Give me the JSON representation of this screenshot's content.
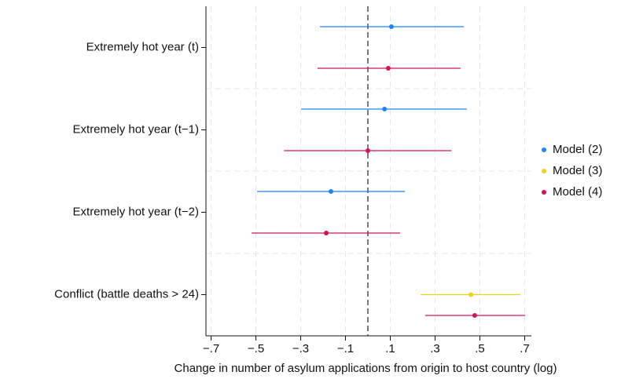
{
  "chart_data": {
    "type": "coefplot",
    "x_label": "Change in number of asylum applications from origin to host country (log)",
    "categories": [
      "Extremely hot year (t)",
      "Extremely hot year (t−1)",
      "Extremely hot year (t−2)",
      "Conflict (battle deaths > 24)"
    ],
    "series": [
      {
        "name": "Model (2)",
        "color": "#1a85ff",
        "values": [
          0.105,
          0.074,
          -0.165,
          null
        ],
        "lower": [
          -0.214,
          -0.298,
          -0.495,
          null
        ],
        "upper": [
          0.428,
          0.442,
          0.165,
          null
        ]
      },
      {
        "name": "Model (3)",
        "color": "#f2cf1d",
        "values": [
          null,
          null,
          null,
          0.46
        ],
        "lower": [
          null,
          null,
          null,
          0.235
        ],
        "upper": [
          null,
          null,
          null,
          0.681
        ]
      },
      {
        "name": "Model (4)",
        "color": "#d41159",
        "values": [
          0.091,
          0.0,
          -0.186,
          0.477
        ],
        "lower": [
          -0.225,
          -0.375,
          -0.519,
          0.256
        ],
        "upper": [
          0.414,
          0.372,
          0.144,
          0.702
        ]
      }
    ],
    "xlim": [
      -0.723,
      0.73
    ],
    "xticks": [
      {
        "value": -0.7,
        "label": "−.7"
      },
      {
        "value": -0.5,
        "label": "−.5"
      },
      {
        "value": -0.3,
        "label": "−.3"
      },
      {
        "value": -0.1,
        "label": "−.1"
      },
      {
        "value": 0.1,
        "label": ".1"
      },
      {
        "value": 0.3,
        "label": ".3"
      },
      {
        "value": 0.5,
        "label": ".5"
      },
      {
        "value": 0.7,
        "label": ".7"
      }
    ],
    "reference_line": 0,
    "grid": true,
    "legend": "right"
  }
}
